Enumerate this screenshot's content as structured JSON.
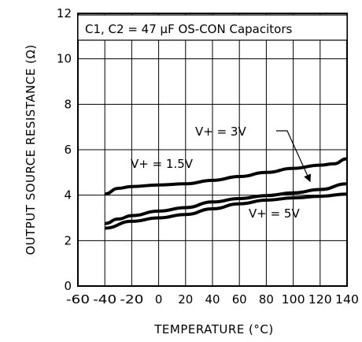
{
  "chart_data": {
    "type": "line",
    "title": "",
    "xlabel": "TEMPERATURE (°C)",
    "ylabel": "OUTPUT SOURCE RESISTANCE (Ω)",
    "xlim": [
      -60,
      140
    ],
    "ylim": [
      0,
      12
    ],
    "x_ticks": [
      "-60",
      "-40",
      "-20",
      "0",
      "20",
      "40",
      "60",
      "80",
      "100",
      "120",
      "140"
    ],
    "y_ticks": [
      "0",
      "2",
      "4",
      "6",
      "8",
      "10",
      "12"
    ],
    "grid": true,
    "annotations": {
      "legend_box": "C1, C2 = 47 μF OS-CON Capacitors",
      "label_1p5v": "V+ = 1.5V",
      "label_3v": "V+ = 3V",
      "label_5v": "V+ = 5V"
    },
    "series": [
      {
        "name": "V+ = 1.5V",
        "x": [
          -40,
          -30,
          -20,
          0,
          20,
          40,
          60,
          80,
          100,
          120,
          130,
          140
        ],
        "values": [
          4.05,
          4.3,
          4.38,
          4.45,
          4.5,
          4.65,
          4.82,
          5.0,
          5.18,
          5.32,
          5.38,
          5.6
        ]
      },
      {
        "name": "V+ = 3V",
        "x": [
          -40,
          -30,
          -20,
          0,
          20,
          40,
          60,
          80,
          100,
          120,
          140
        ],
        "values": [
          2.75,
          2.95,
          3.1,
          3.3,
          3.45,
          3.7,
          3.85,
          3.98,
          4.1,
          4.25,
          4.5
        ]
      },
      {
        "name": "V+ = 5V",
        "x": [
          -40,
          -20,
          0,
          20,
          40,
          60,
          80,
          100,
          120,
          140
        ],
        "values": [
          2.55,
          2.85,
          3.0,
          3.15,
          3.4,
          3.62,
          3.78,
          3.88,
          3.95,
          4.05
        ]
      }
    ]
  }
}
